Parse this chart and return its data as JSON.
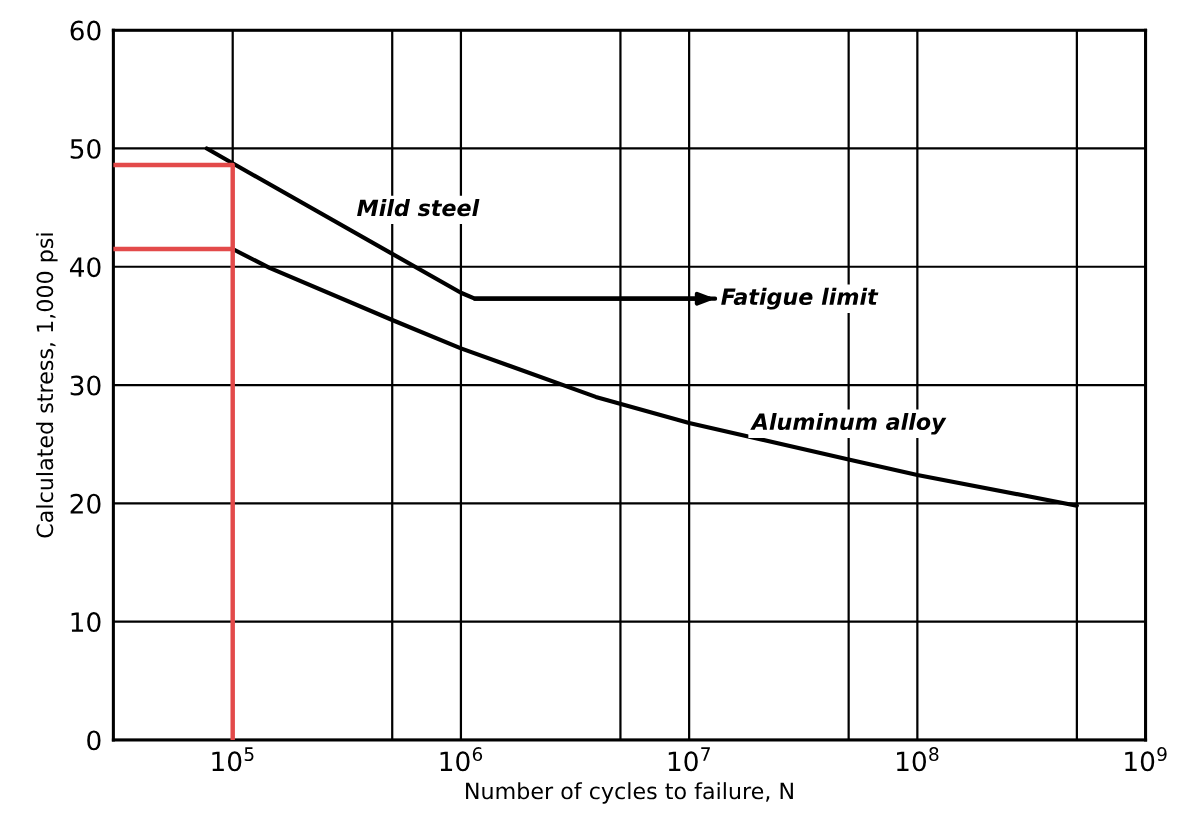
{
  "chart_data": {
    "type": "line",
    "xlabel": "Number of cycles to failure, N",
    "ylabel": "Calculated stress, 1,000 psi",
    "log": "x",
    "xlim": [
      30000,
      1000000000
    ],
    "xticks": [
      {
        "value": 100000,
        "label": "10$^{5}$"
      },
      {
        "value": 500000,
        "label": null
      },
      {
        "value": 1000000,
        "label": "10$^{6}$"
      },
      {
        "value": 5000000,
        "label": null
      },
      {
        "value": 10000000,
        "label": "10$^{7}$"
      },
      {
        "value": 50000000,
        "label": null
      },
      {
        "value": 100000000,
        "label": "10$^{8}$"
      },
      {
        "value": 500000000,
        "label": null
      },
      {
        "value": 1000000000,
        "label": "10$^{9}$"
      }
    ],
    "ylim": [
      0,
      60
    ],
    "yticks": [
      0,
      10,
      20,
      30,
      40,
      50,
      60
    ],
    "grid": true,
    "legend": false,
    "series": [
      {
        "name": "Mild steel",
        "color": "#000000",
        "x": [
          77000,
          103000,
          1000000,
          1150000,
          13000000
        ],
        "values": [
          50,
          48.6,
          37.8,
          37.3,
          37.3
        ]
      },
      {
        "name": "Aluminum alloy",
        "color": "#000000",
        "x": [
          100000,
          145000,
          500000,
          1000000,
          3900000,
          10000000,
          50000000,
          100000000,
          500000000
        ],
        "values": [
          41.5,
          39.9,
          35.5,
          33.1,
          29.0,
          26.8,
          23.7,
          22.4,
          19.8
        ]
      },
      {
        "color": "#e34a4a",
        "x": [
          30000,
          100000,
          100000
        ],
        "values": [
          48.6,
          48.6,
          0
        ]
      },
      {
        "color": "#e34a4a",
        "x": [
          30000,
          100000
        ],
        "values": [
          41.5,
          41.5
        ]
      }
    ],
    "annotations": [
      "Fatigue limit"
    ]
  }
}
